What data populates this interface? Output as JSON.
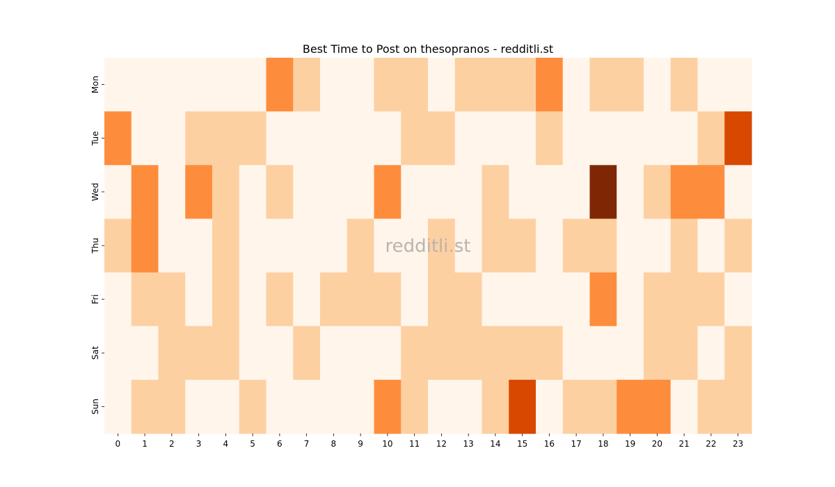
{
  "chart_data": {
    "type": "heatmap",
    "title": "Best Time to Post on thesopranos - redditli.st",
    "xlabel": "",
    "ylabel": "",
    "x": [
      "0",
      "1",
      "2",
      "3",
      "4",
      "5",
      "6",
      "7",
      "8",
      "9",
      "10",
      "11",
      "12",
      "13",
      "14",
      "15",
      "16",
      "17",
      "18",
      "19",
      "20",
      "21",
      "22",
      "23"
    ],
    "y": [
      "Mon",
      "Tue",
      "Wed",
      "Thu",
      "Fri",
      "Sat",
      "Sun"
    ],
    "values": [
      [
        0,
        0,
        0,
        0,
        0,
        0,
        2,
        1,
        0,
        0,
        1,
        1,
        0,
        1,
        1,
        1,
        2,
        0,
        1,
        1,
        0,
        1,
        0,
        0
      ],
      [
        2,
        0,
        0,
        1,
        1,
        1,
        0,
        0,
        0,
        0,
        0,
        1,
        1,
        0,
        0,
        0,
        1,
        0,
        0,
        0,
        0,
        0,
        1,
        3
      ],
      [
        0,
        2,
        0,
        2,
        1,
        0,
        1,
        0,
        0,
        0,
        2,
        0,
        0,
        0,
        1,
        0,
        0,
        0,
        4,
        0,
        1,
        2,
        2,
        0
      ],
      [
        1,
        2,
        0,
        0,
        1,
        0,
        0,
        0,
        0,
        1,
        0,
        0,
        1,
        0,
        1,
        1,
        0,
        1,
        1,
        0,
        0,
        1,
        0,
        1
      ],
      [
        0,
        1,
        1,
        0,
        1,
        0,
        1,
        0,
        1,
        1,
        1,
        0,
        1,
        1,
        0,
        0,
        0,
        0,
        2,
        0,
        1,
        1,
        1,
        0
      ],
      [
        0,
        0,
        1,
        1,
        1,
        0,
        0,
        1,
        0,
        0,
        0,
        1,
        1,
        1,
        1,
        1,
        1,
        0,
        0,
        0,
        1,
        1,
        0,
        1
      ],
      [
        0,
        1,
        1,
        0,
        0,
        1,
        0,
        0,
        0,
        0,
        2,
        1,
        0,
        0,
        1,
        3,
        0,
        1,
        1,
        2,
        2,
        0,
        1,
        1
      ]
    ],
    "colors": [
      "#fff5eb",
      "#fdd0a2",
      "#fd8d3c",
      "#d94801",
      "#7f2704"
    ],
    "colorbar": false,
    "grid": false,
    "watermark": "redditli.st"
  }
}
